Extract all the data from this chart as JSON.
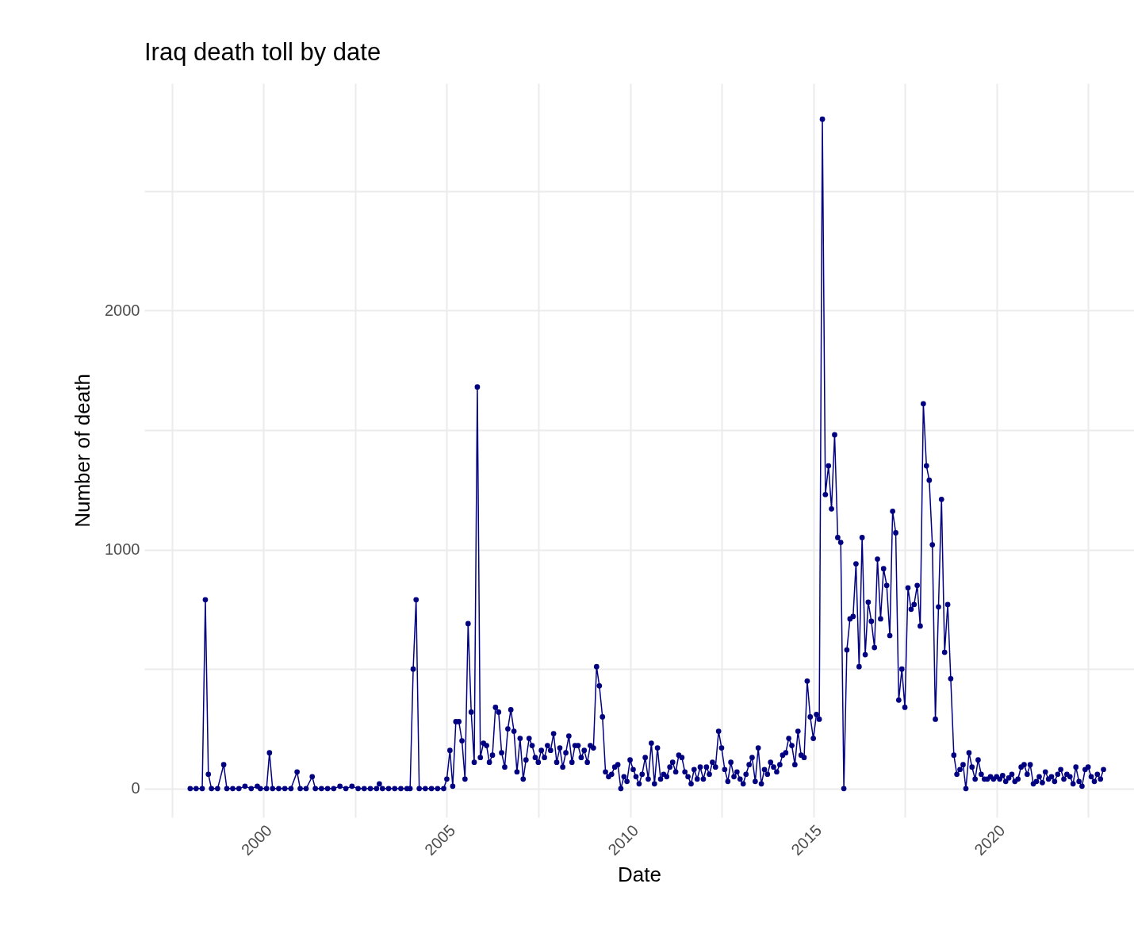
{
  "chart_data": {
    "type": "line",
    "title": "Iraq death toll by date",
    "xlabel": "Date",
    "ylabel": "Number of death",
    "x": [
      "1998-01",
      "1998-03",
      "1998-05",
      "1998-06",
      "1998-07",
      "1998-08",
      "1998-10",
      "1998-12",
      "1999-01",
      "1999-03",
      "1999-05",
      "1999-07",
      "1999-09",
      "1999-11",
      "1999-12",
      "2000-02",
      "2000-03",
      "2000-04",
      "2000-06",
      "2000-08",
      "2000-10",
      "2000-12",
      "2001-01",
      "2001-03",
      "2001-05",
      "2001-06",
      "2001-08",
      "2001-10",
      "2001-12",
      "2002-02",
      "2002-04",
      "2002-06",
      "2002-08",
      "2002-10",
      "2002-12",
      "2003-02",
      "2003-03",
      "2003-04",
      "2003-06",
      "2003-08",
      "2003-10",
      "2003-12",
      "2004-01",
      "2004-02",
      "2004-03",
      "2004-04",
      "2004-06",
      "2004-08",
      "2004-10",
      "2004-12",
      "2005-01",
      "2005-02",
      "2005-03",
      "2005-04",
      "2005-05",
      "2005-06",
      "2005-07",
      "2005-08",
      "2005-09",
      "2005-10",
      "2005-11",
      "2005-12",
      "2006-01",
      "2006-02",
      "2006-03",
      "2006-04",
      "2006-05",
      "2006-06",
      "2006-07",
      "2006-08",
      "2006-09",
      "2006-10",
      "2006-11",
      "2006-12",
      "2007-01",
      "2007-02",
      "2007-03",
      "2007-04",
      "2007-05",
      "2007-06",
      "2007-07",
      "2007-08",
      "2007-09",
      "2007-10",
      "2007-11",
      "2007-12",
      "2008-01",
      "2008-02",
      "2008-03",
      "2008-04",
      "2008-05",
      "2008-06",
      "2008-07",
      "2008-08",
      "2008-09",
      "2008-10",
      "2008-11",
      "2008-12",
      "2009-01",
      "2009-02",
      "2009-03",
      "2009-04",
      "2009-05",
      "2009-06",
      "2009-07",
      "2009-08",
      "2009-09",
      "2009-10",
      "2009-11",
      "2009-12",
      "2010-01",
      "2010-02",
      "2010-03",
      "2010-04",
      "2010-05",
      "2010-06",
      "2010-07",
      "2010-08",
      "2010-09",
      "2010-10",
      "2010-11",
      "2010-12",
      "2011-01",
      "2011-02",
      "2011-03",
      "2011-04",
      "2011-05",
      "2011-06",
      "2011-07",
      "2011-08",
      "2011-09",
      "2011-10",
      "2011-11",
      "2011-12",
      "2012-01",
      "2012-02",
      "2012-03",
      "2012-04",
      "2012-05",
      "2012-06",
      "2012-07",
      "2012-08",
      "2012-09",
      "2012-10",
      "2012-11",
      "2012-12",
      "2013-01",
      "2013-02",
      "2013-03",
      "2013-04",
      "2013-05",
      "2013-06",
      "2013-07",
      "2013-08",
      "2013-09",
      "2013-10",
      "2013-11",
      "2013-12",
      "2014-01",
      "2014-02",
      "2014-03",
      "2014-04",
      "2014-05",
      "2014-06",
      "2014-07",
      "2014-08",
      "2014-09",
      "2014-10",
      "2014-11",
      "2014-12",
      "2015-01",
      "2015-02",
      "2015-03",
      "2015-04",
      "2015-05",
      "2015-06",
      "2015-07",
      "2015-08",
      "2015-09",
      "2015-10",
      "2015-11",
      "2015-12",
      "2016-01",
      "2016-02",
      "2016-03",
      "2016-04",
      "2016-05",
      "2016-06",
      "2016-07",
      "2016-08",
      "2016-09",
      "2016-10",
      "2016-11",
      "2016-12",
      "2017-01",
      "2017-02",
      "2017-03",
      "2017-04",
      "2017-05",
      "2017-06",
      "2017-07",
      "2017-08",
      "2017-09",
      "2017-10",
      "2017-11",
      "2017-12",
      "2018-01",
      "2018-02",
      "2018-03",
      "2018-04",
      "2018-05",
      "2018-06",
      "2018-07",
      "2018-08",
      "2018-09",
      "2018-10",
      "2018-11",
      "2018-12",
      "2019-01",
      "2019-02",
      "2019-03",
      "2019-04",
      "2019-05",
      "2019-06",
      "2019-07",
      "2019-08",
      "2019-09",
      "2019-10",
      "2019-11",
      "2019-12",
      "2020-01",
      "2020-02",
      "2020-03",
      "2020-04",
      "2020-05",
      "2020-06",
      "2020-07",
      "2020-08",
      "2020-09",
      "2020-10",
      "2020-11",
      "2020-12",
      "2021-01",
      "2021-02",
      "2021-03",
      "2021-04",
      "2021-05",
      "2021-06",
      "2021-07",
      "2021-08",
      "2021-09",
      "2021-10",
      "2021-11",
      "2021-12",
      "2022-01",
      "2022-02",
      "2022-03",
      "2022-04",
      "2022-05",
      "2022-06",
      "2022-07",
      "2022-08",
      "2022-09",
      "2022-10",
      "2022-11",
      "2022-12"
    ],
    "series": [
      {
        "color": "#000080",
        "values": [
          0,
          0,
          0,
          790,
          60,
          0,
          0,
          100,
          0,
          0,
          0,
          10,
          0,
          10,
          0,
          0,
          150,
          0,
          0,
          0,
          0,
          70,
          0,
          0,
          50,
          0,
          0,
          0,
          0,
          10,
          0,
          10,
          0,
          0,
          0,
          0,
          20,
          0,
          0,
          0,
          0,
          0,
          0,
          500,
          790,
          0,
          0,
          0,
          0,
          0,
          40,
          160,
          10,
          280,
          280,
          200,
          40,
          690,
          320,
          110,
          1680,
          130,
          190,
          180,
          110,
          140,
          340,
          320,
          150,
          90,
          250,
          330,
          240,
          70,
          210,
          40,
          120,
          210,
          180,
          130,
          110,
          160,
          130,
          180,
          160,
          230,
          110,
          170,
          90,
          150,
          220,
          110,
          180,
          180,
          130,
          160,
          110,
          180,
          170,
          510,
          430,
          300,
          70,
          50,
          60,
          90,
          100,
          0,
          50,
          30,
          120,
          80,
          50,
          20,
          60,
          130,
          40,
          190,
          20,
          170,
          40,
          60,
          50,
          90,
          110,
          70,
          140,
          130,
          70,
          50,
          20,
          80,
          40,
          90,
          40,
          90,
          60,
          110,
          90,
          240,
          170,
          80,
          30,
          110,
          50,
          70,
          40,
          20,
          60,
          100,
          130,
          30,
          170,
          20,
          80,
          60,
          110,
          90,
          70,
          100,
          140,
          150,
          210,
          180,
          100,
          240,
          140,
          130,
          450,
          300,
          210,
          310,
          290,
          2800,
          1230,
          1350,
          1170,
          1480,
          1050,
          1030,
          0,
          580,
          710,
          720,
          940,
          510,
          1050,
          560,
          780,
          700,
          590,
          960,
          710,
          920,
          850,
          640,
          1160,
          1070,
          370,
          500,
          340,
          840,
          750,
          770,
          850,
          680,
          1610,
          1350,
          1290,
          1020,
          290,
          760,
          1210,
          570,
          770,
          460,
          140,
          60,
          80,
          100,
          0,
          150,
          90,
          40,
          120,
          60,
          40,
          40,
          50,
          40,
          50,
          40,
          55,
          30,
          45,
          60,
          30,
          40,
          90,
          100,
          60,
          100,
          20,
          30,
          50,
          25,
          70,
          40,
          50,
          30,
          60,
          80,
          40,
          60,
          50,
          20,
          90,
          30,
          10,
          80,
          90,
          50,
          30,
          60,
          40,
          80
        ]
      }
    ],
    "xlim": [
      "1996-10",
      "2023-10"
    ],
    "xticks": [
      {
        "value": "1997-07",
        "label": null
      },
      "2000",
      {
        "value": "2002-07",
        "label": null
      },
      "2005",
      {
        "value": "2007-07",
        "label": null
      },
      "2010",
      {
        "value": "2012-07",
        "label": null
      },
      "2015",
      {
        "value": "2017-07",
        "label": null
      },
      "2020",
      {
        "value": "2022-07",
        "label": null
      }
    ],
    "ylim": [
      -120,
      2950
    ],
    "yticks": [
      0,
      {
        "value": 500,
        "label": null
      },
      1000,
      {
        "value": 1500,
        "label": null
      },
      2000,
      {
        "value": 2500,
        "label": null
      }
    ],
    "grid": true,
    "marker": "circle",
    "line_style": "solid"
  }
}
